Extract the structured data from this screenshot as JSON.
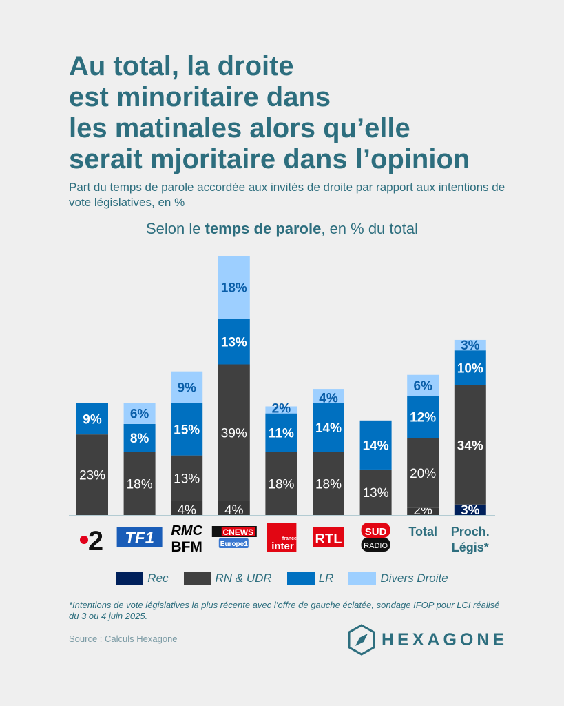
{
  "title": "Au total, la droite est minoritaire dans les matinales alors qu’elle serait mjoritaire dans l’opinion",
  "title_lines": [
    "Au total, la droite",
    "est minoritaire dans",
    "les matinales alors qu’elle",
    "serait mjoritaire dans l’opinion"
  ],
  "subtitle": "Part du temps de parole accordée aux invités de droite par rapport aux intentions de vote législatives, en %",
  "chart_subtitle": {
    "pre": "Selon le ",
    "bold": "temps de parole",
    "post": ", en % du total"
  },
  "chart_data": {
    "type": "bar",
    "stacked": true,
    "categories": [
      "France 2",
      "TF1",
      "RMC BFM",
      "CNews Europe 1",
      "France Inter",
      "RTL",
      "Sud Radio",
      "Total",
      "Proch. Légis*"
    ],
    "category_labels": [
      "2",
      "TF1",
      "RMC BFM",
      "CNEWS Europe1",
      "france inter",
      "RTL",
      "SUD RADIO",
      "Total",
      "Proch. Légis*"
    ],
    "series": [
      {
        "name": "Rec",
        "color": "#00205b",
        "values": [
          0,
          0,
          4,
          4,
          0,
          0,
          0,
          2,
          3
        ]
      },
      {
        "name": "RN & UDR",
        "color": "#404040",
        "values": [
          23,
          18,
          13,
          39,
          18,
          18,
          13,
          20,
          34
        ]
      },
      {
        "name": "LR",
        "color": "#0070c0",
        "values": [
          9,
          8,
          15,
          13,
          11,
          14,
          14,
          12,
          10
        ]
      },
      {
        "name": "Divers Droite",
        "color": "#9dcfff",
        "values": [
          0,
          6,
          9,
          18,
          2,
          4,
          0,
          6,
          3
        ]
      }
    ],
    "ylim": [
      0,
      74
    ],
    "grid": false,
    "legend": "bottom"
  },
  "footnote": "*Intentions de vote législatives la plus récente avec l’offre de gauche éclatée, sondage IFOP pour LCI réalisé du 3 ou 4 juin 2025.",
  "source": "Source : Calculs Hexagone",
  "brand": "HEXAGONE",
  "colors": {
    "accent": "#2d6e7e",
    "background": "#efefef"
  }
}
